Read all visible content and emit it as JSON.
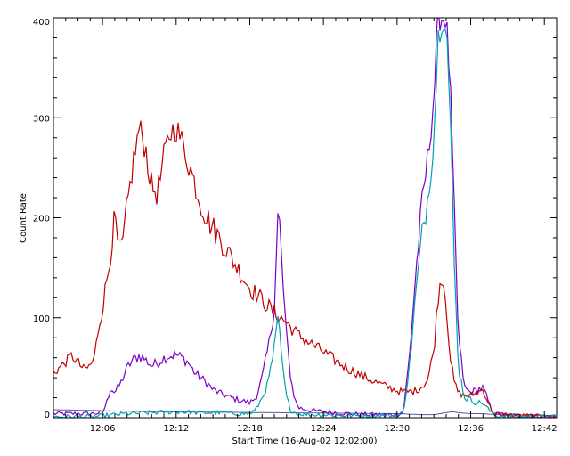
{
  "chart_data": {
    "type": "line",
    "title": "",
    "xlabel": "Start Time (16-Aug-02 12:02:00)",
    "ylabel": "Count Rate",
    "xlim": [
      "12:02:00",
      "12:43:00"
    ],
    "ylim": [
      0,
      400
    ],
    "x_ticks": [
      "12:06",
      "12:12",
      "12:18",
      "12:24",
      "12:30",
      "12:36",
      "12:42"
    ],
    "y_ticks": [
      0,
      100,
      200,
      300,
      400
    ],
    "grid": false,
    "series": [
      {
        "color": "#c00000",
        "x": [
          "12:02:00",
          "12:02:30",
          "12:03:30",
          "12:04:00",
          "12:04:30",
          "12:05:00",
          "12:05:20",
          "12:05:40",
          "12:06:00",
          "12:06:30",
          "12:07:00",
          "12:07:20",
          "12:07:40",
          "12:08:00",
          "12:08:30",
          "12:09:00",
          "12:09:30",
          "12:10:00",
          "12:10:30",
          "12:11:00",
          "12:11:30",
          "12:12:00",
          "12:12:30",
          "12:13:00",
          "12:13:30",
          "12:14:00",
          "12:14:30",
          "12:15:00",
          "12:16:00",
          "12:17:00",
          "12:18:00",
          "12:19:00",
          "12:20:00",
          "12:21:00",
          "12:22:00",
          "12:23:00",
          "12:24:00",
          "12:25:00",
          "12:26:00",
          "12:27:00",
          "12:28:00",
          "12:29:00",
          "12:30:00",
          "12:30:30",
          "12:31:00",
          "12:31:30",
          "12:32:00",
          "12:32:30",
          "12:33:00",
          "12:33:20",
          "12:33:40",
          "12:34:00",
          "12:34:20",
          "12:34:40",
          "12:35:00",
          "12:35:30",
          "12:36:00",
          "12:36:30",
          "12:37:00",
          "12:37:20",
          "12:37:40",
          "12:38:00",
          "12:39:00",
          "12:40:00",
          "12:41:00",
          "12:42:00",
          "12:43:00"
        ],
        "y": [
          45,
          50,
          62,
          55,
          48,
          52,
          60,
          90,
          110,
          150,
          200,
          165,
          175,
          210,
          255,
          290,
          270,
          230,
          225,
          260,
          285,
          290,
          275,
          255,
          235,
          215,
          200,
          190,
          170,
          150,
          130,
          118,
          105,
          95,
          82,
          74,
          66,
          57,
          49,
          43,
          37,
          32,
          27,
          26,
          26,
          27,
          31,
          38,
          68,
          120,
          145,
          115,
          60,
          35,
          25,
          22,
          22,
          25,
          28,
          18,
          8,
          4,
          3,
          2,
          2,
          1,
          0
        ]
      },
      {
        "color": "#7a00c8",
        "x": [
          "12:02:00",
          "12:05:00",
          "12:06:00",
          "12:06:20",
          "12:06:40",
          "12:07:00",
          "12:07:30",
          "12:08:00",
          "12:08:30",
          "12:09:00",
          "12:09:30",
          "12:10:00",
          "12:10:30",
          "12:11:00",
          "12:11:30",
          "12:12:00",
          "12:12:30",
          "12:13:00",
          "12:13:30",
          "12:14:00",
          "12:14:30",
          "12:15:00",
          "12:16:00",
          "12:17:00",
          "12:18:00",
          "12:18:30",
          "12:19:00",
          "12:19:30",
          "12:20:00",
          "12:20:20",
          "12:20:40",
          "12:21:00",
          "12:21:20",
          "12:21:40",
          "12:22:00",
          "12:23:00",
          "12:24:00",
          "12:25:00",
          "12:26:00",
          "12:28:00",
          "12:30:00",
          "12:30:30",
          "12:31:00",
          "12:31:30",
          "12:32:00",
          "12:32:30",
          "12:33:00",
          "12:33:20",
          "12:33:40",
          "12:34:00",
          "12:34:20",
          "12:34:40",
          "12:35:00",
          "12:35:30",
          "12:36:00",
          "12:36:30",
          "12:37:00",
          "12:37:20",
          "12:37:40",
          "12:38:00",
          "12:40:00",
          "12:43:00"
        ],
        "y": [
          4,
          4,
          5,
          15,
          30,
          25,
          35,
          50,
          58,
          62,
          58,
          52,
          55,
          60,
          62,
          63,
          60,
          55,
          45,
          40,
          35,
          28,
          22,
          18,
          15,
          20,
          40,
          70,
          110,
          215,
          140,
          80,
          40,
          18,
          10,
          7,
          6,
          5,
          4,
          3,
          3,
          5,
          60,
          140,
          210,
          260,
          320,
          400,
          400,
          400,
          330,
          200,
          80,
          30,
          25,
          28,
          30,
          20,
          8,
          3,
          2,
          1
        ]
      },
      {
        "color": "#00a0b4",
        "x": [
          "12:02:00",
          "12:05:00",
          "12:06:00",
          "12:07:00",
          "12:08:00",
          "12:10:00",
          "12:12:00",
          "12:14:00",
          "12:16:00",
          "12:17:00",
          "12:18:00",
          "12:18:30",
          "12:19:00",
          "12:19:30",
          "12:20:00",
          "12:20:20",
          "12:20:40",
          "12:21:00",
          "12:21:20",
          "12:21:40",
          "12:22:00",
          "12:23:00",
          "12:24:00",
          "12:26:00",
          "12:28:00",
          "12:30:00",
          "12:30:30",
          "12:31:00",
          "12:31:30",
          "12:32:00",
          "12:32:30",
          "12:33:00",
          "12:33:20",
          "12:33:40",
          "12:34:00",
          "12:34:20",
          "12:34:40",
          "12:35:00",
          "12:35:30",
          "12:36:00",
          "12:36:30",
          "12:37:00",
          "12:37:20",
          "12:37:40",
          "12:38:00",
          "12:40:00",
          "12:43:00"
        ],
        "y": [
          1,
          1,
          2,
          3,
          4,
          5,
          6,
          5,
          5,
          4,
          4,
          8,
          20,
          35,
          70,
          100,
          50,
          20,
          8,
          5,
          4,
          3,
          3,
          2,
          2,
          2,
          5,
          50,
          120,
          180,
          220,
          280,
          380,
          400,
          400,
          300,
          150,
          50,
          20,
          18,
          15,
          15,
          10,
          5,
          2,
          1,
          1
        ]
      },
      {
        "color": "#5a5a96",
        "x": [
          "12:02:00",
          "12:10:00",
          "12:20:00",
          "12:30:00",
          "12:32:00",
          "12:33:00",
          "12:33:30",
          "12:34:00",
          "12:34:30",
          "12:35:00",
          "12:36:00",
          "12:37:00",
          "12:38:00",
          "12:40:00",
          "12:43:00"
        ],
        "y": [
          8,
          6,
          5,
          4,
          3,
          3,
          4,
          5,
          6,
          5,
          4,
          4,
          3,
          3,
          2
        ]
      }
    ]
  }
}
